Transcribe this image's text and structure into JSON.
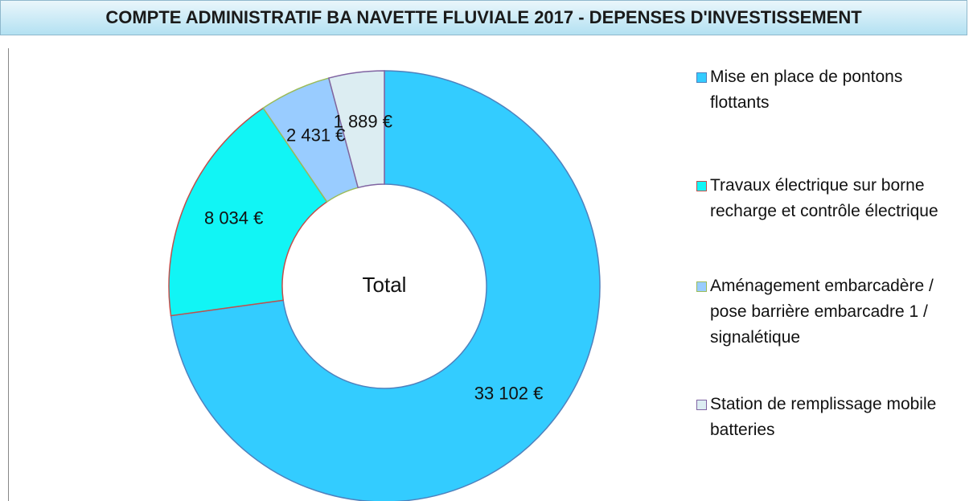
{
  "chart_data": {
    "type": "donut",
    "title": "COMPTE ADMINISTRATIF BA NAVETTE FLUVIALE 2017 - DEPENSES D'INVESTISSEMENT",
    "center_label": "Total",
    "categories": [
      "Mise en place de pontons flottants",
      "Travaux électrique sur borne recharge et contrôle électrique",
      "Aménagement embarcadère / pose barrière embarcadre 1 / signalétique",
      "Station de remplissage mobile batteries"
    ],
    "values": [
      33102,
      8034,
      2431,
      1889
    ],
    "value_labels": [
      "33 102 €",
      "8 034 €",
      "2 431 €",
      "1 889 €"
    ],
    "colors": [
      "#33ccff",
      "#11f5f5",
      "#99ccff",
      "#dcedf2"
    ],
    "border_colors": [
      "#4f81bd",
      "#c0504d",
      "#9bbb59",
      "#8064a2"
    ],
    "legend": "right"
  }
}
